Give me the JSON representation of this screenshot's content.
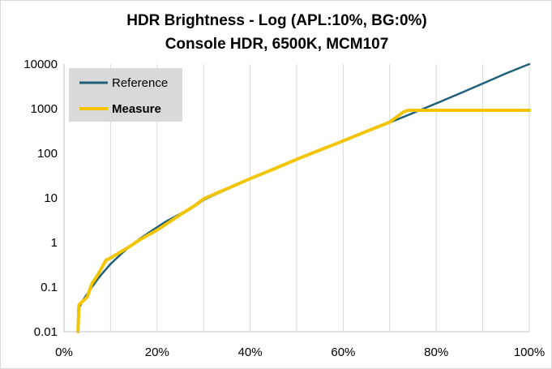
{
  "chart_data": {
    "type": "line",
    "title": "HDR Brightness - Log (APL:10%,  BG:0%)",
    "subtitle": "Console HDR, 6500K, MCM107",
    "x_ticks": [
      "0%",
      "20%",
      "40%",
      "60%",
      "80%",
      "100%"
    ],
    "y_ticks": [
      "0.01",
      "0.1",
      "1",
      "10",
      "100",
      "1000",
      "10000"
    ],
    "xlim": [
      0,
      100
    ],
    "ylim": [
      0.01,
      10000
    ],
    "y_scale": "log",
    "grid": "vertical",
    "legend": "top-left",
    "series": [
      {
        "name": "Reference",
        "color": "#1f5f7a",
        "points": [
          [
            3,
            0.03
          ],
          [
            4,
            0.05
          ],
          [
            5,
            0.07
          ],
          [
            6,
            0.1
          ],
          [
            7,
            0.14
          ],
          [
            8,
            0.19
          ],
          [
            9,
            0.25
          ],
          [
            10,
            0.33
          ],
          [
            12,
            0.52
          ],
          [
            14,
            0.8
          ],
          [
            16,
            1.15
          ],
          [
            18,
            1.6
          ],
          [
            20,
            2.2
          ],
          [
            22,
            3.0
          ],
          [
            25,
            4.4
          ],
          [
            28,
            6.4
          ],
          [
            30,
            9.0
          ],
          [
            35,
            15.7
          ],
          [
            40,
            26.6
          ],
          [
            45,
            44
          ],
          [
            50,
            72
          ],
          [
            55,
            116
          ],
          [
            60,
            187
          ],
          [
            65,
            302
          ],
          [
            70,
            489
          ],
          [
            75,
            798
          ],
          [
            80,
            1313
          ],
          [
            85,
            2178
          ],
          [
            90,
            3655
          ],
          [
            95,
            6182
          ],
          [
            100,
            10000
          ]
        ]
      },
      {
        "name": "Measure",
        "color": "#f2c500",
        "points": [
          [
            3,
            0.01
          ],
          [
            3.2,
            0.04
          ],
          [
            5,
            0.06
          ],
          [
            6,
            0.12
          ],
          [
            7,
            0.17
          ],
          [
            9,
            0.4
          ],
          [
            10,
            0.45
          ],
          [
            12,
            0.6
          ],
          [
            14,
            0.8
          ],
          [
            16,
            1.1
          ],
          [
            18,
            1.45
          ],
          [
            20,
            1.9
          ],
          [
            22,
            2.6
          ],
          [
            25,
            4.2
          ],
          [
            28,
            6.6
          ],
          [
            30,
            9.5
          ],
          [
            35,
            16
          ],
          [
            40,
            27
          ],
          [
            45,
            44
          ],
          [
            50,
            73
          ],
          [
            55,
            118
          ],
          [
            60,
            190
          ],
          [
            65,
            310
          ],
          [
            70,
            500
          ],
          [
            73,
            850
          ],
          [
            74,
            920
          ],
          [
            80,
            920
          ],
          [
            90,
            920
          ],
          [
            100,
            920
          ]
        ]
      }
    ]
  }
}
